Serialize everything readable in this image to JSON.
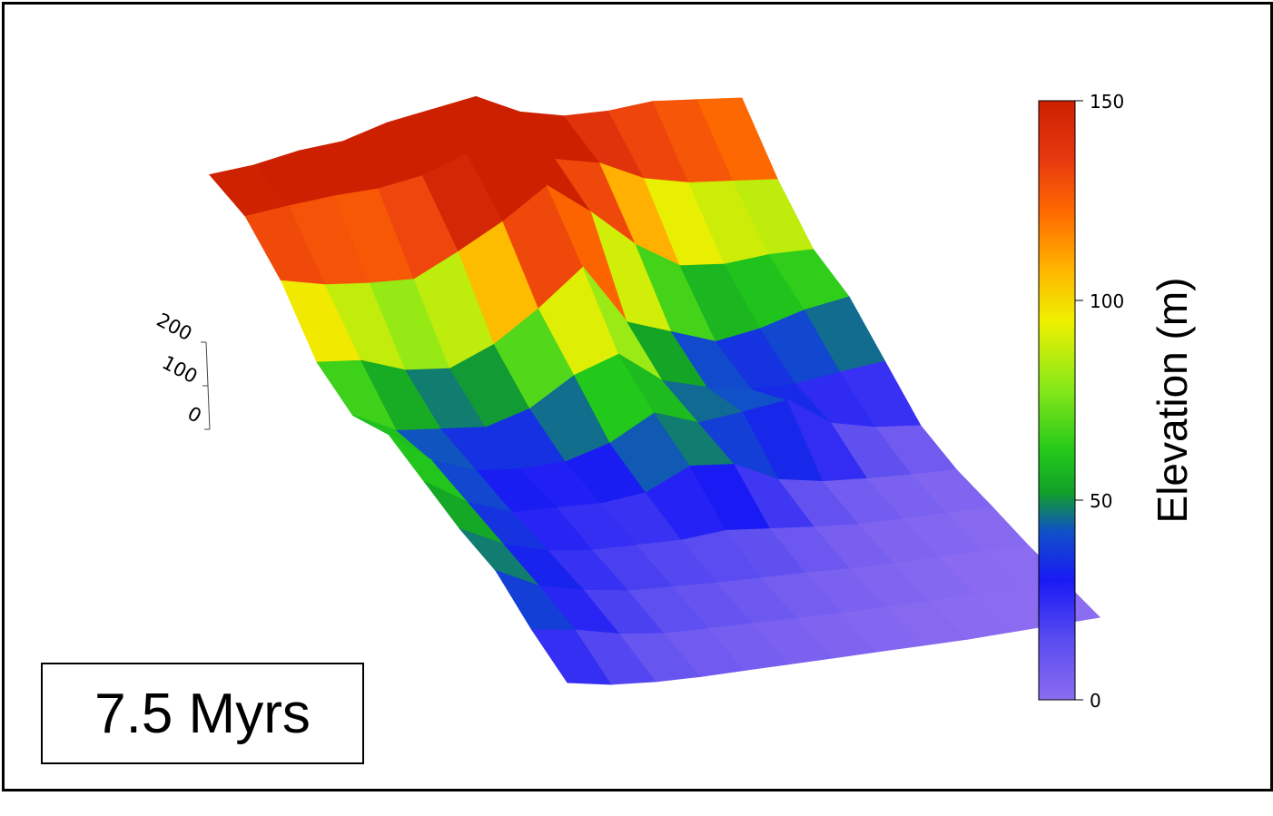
{
  "chart_data": {
    "type": "surface3d",
    "title": "",
    "time_label": "7.5 Myrs",
    "z_axis": {
      "ticks": [
        "0",
        "100",
        "200"
      ],
      "range": [
        0,
        200
      ]
    },
    "colorbar": {
      "label": "Elevation (m)",
      "range": [
        0,
        150
      ],
      "ticks": [
        "0",
        "50",
        "100",
        "150"
      ],
      "colormap_stops": [
        {
          "value": 0,
          "color": "#8c6cf0"
        },
        {
          "value": 15,
          "color": "#5a4cf0"
        },
        {
          "value": 30,
          "color": "#1a1af5"
        },
        {
          "value": 42,
          "color": "#1050c8"
        },
        {
          "value": 52,
          "color": "#12a028"
        },
        {
          "value": 62,
          "color": "#22c81a"
        },
        {
          "value": 78,
          "color": "#88e81a"
        },
        {
          "value": 95,
          "color": "#f0f000"
        },
        {
          "value": 108,
          "color": "#ffb400"
        },
        {
          "value": 122,
          "color": "#ff6a00"
        },
        {
          "value": 135,
          "color": "#e83a10"
        },
        {
          "value": 150,
          "color": "#cc2000"
        }
      ]
    },
    "elevation_grid": [
      [
        150,
        152,
        158,
        160,
        170,
        175,
        180,
        160,
        150,
        148,
        150,
        145,
        140
      ],
      [
        145,
        148,
        150,
        150,
        155,
        168,
        200,
        150,
        140,
        120,
        110,
        105,
        100
      ],
      [
        120,
        110,
        105,
        102,
        120,
        140,
        165,
        135,
        100,
        75,
        70,
        72,
        70
      ],
      [
        80,
        75,
        60,
        55,
        70,
        95,
        125,
        70,
        55,
        40,
        45,
        55,
        60
      ],
      [
        65,
        45,
        40,
        35,
        45,
        68,
        80,
        50,
        38,
        30,
        28,
        32,
        35
      ],
      [
        80,
        50,
        35,
        30,
        30,
        40,
        60,
        45,
        48,
        52,
        25,
        15,
        10
      ],
      [
        70,
        45,
        30,
        28,
        25,
        28,
        45,
        40,
        20,
        12,
        8,
        5,
        3
      ],
      [
        60,
        40,
        28,
        22,
        20,
        18,
        20,
        15,
        10,
        6,
        4,
        3,
        2
      ],
      [
        55,
        35,
        25,
        18,
        15,
        12,
        10,
        8,
        5,
        3,
        2,
        1,
        0
      ],
      [
        35,
        28,
        18,
        12,
        10,
        8,
        6,
        4,
        3,
        2,
        1,
        0,
        0
      ],
      [
        20,
        12,
        8,
        6,
        5,
        4,
        3,
        2,
        1,
        0,
        0,
        0,
        0
      ]
    ],
    "grid": false
  }
}
